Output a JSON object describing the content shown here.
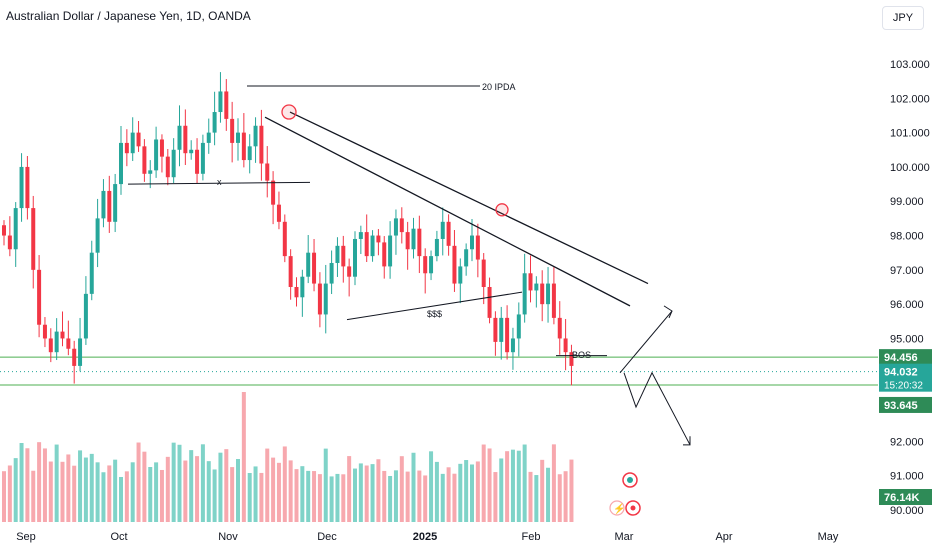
{
  "header": {
    "title": "Australian Dollar / Japanese Yen, 1D, OANDA",
    "currency": "JPY"
  },
  "colors": {
    "up": "#26a69a",
    "down": "#f23645",
    "vol_up": "#7fd3c8",
    "vol_down": "#f7a8ae",
    "level_line": "#4caf50",
    "badge_green": "#2e8b57",
    "drawing": "#131722",
    "marker": "#f23645"
  },
  "chart_data": {
    "type": "candlestick",
    "ylim": [
      89.9,
      103.3
    ],
    "ticks": [
      "103.000",
      "102.000",
      "101.000",
      "100.000",
      "99.000",
      "98.000",
      "97.000",
      "96.000",
      "95.000",
      "92.000",
      "91.000",
      "90.000"
    ],
    "tick_values": [
      103,
      102,
      101,
      100,
      99,
      98,
      97,
      96,
      95,
      92,
      91,
      90
    ],
    "xlabels": [
      "Sep",
      "Oct",
      "Nov",
      "Dec",
      "2025",
      "Feb",
      "Mar",
      "Apr",
      "May"
    ],
    "price_levels": [
      {
        "value": 94.456,
        "label": "94.456",
        "kind": "line"
      },
      {
        "value": 93.645,
        "label": "93.645",
        "kind": "line"
      },
      {
        "value": 94.032,
        "label": "94.032",
        "kind": "current"
      }
    ],
    "countdown": "15:20:32",
    "volume_label": "76.14K",
    "annotations": [
      {
        "text": "20 IPDA",
        "x": "Nov",
        "y": 102.36
      },
      {
        "text": "x",
        "x": "Nov",
        "y": 99.5
      },
      {
        "text": "$$$",
        "x": "Jan",
        "y": 95.6
      },
      {
        "text": "BOS",
        "x": "Feb",
        "y": 94.5
      }
    ],
    "closes": [
      98.0,
      97.6,
      98.8,
      100.0,
      98.8,
      97.0,
      95.4,
      95.0,
      94.6,
      95.2,
      95.0,
      94.7,
      94.2,
      95.0,
      96.3,
      97.5,
      98.5,
      99.3,
      98.4,
      99.5,
      100.7,
      100.4,
      101.0,
      100.6,
      99.8,
      99.9,
      100.8,
      100.3,
      99.7,
      100.5,
      101.2,
      100.4,
      100.5,
      99.8,
      100.7,
      101.0,
      101.6,
      102.2,
      101.4,
      100.7,
      101.0,
      100.2,
      100.6,
      101.2,
      100.1,
      99.6,
      98.9,
      98.4,
      97.4,
      96.5,
      96.2,
      96.8,
      97.5,
      96.6,
      95.7,
      96.6,
      97.2,
      97.7,
      97.1,
      96.8,
      97.9,
      98.1,
      97.4,
      98.0,
      97.8,
      97.1,
      98.0,
      98.5,
      98.1,
      97.6,
      98.2,
      97.4,
      96.9,
      97.4,
      97.9,
      98.4,
      97.7,
      96.6,
      97.1,
      97.6,
      98.0,
      97.3,
      96.5,
      95.6,
      94.9,
      95.6,
      94.6,
      95.0,
      95.7,
      96.9,
      96.4,
      96.6,
      96.0,
      96.6,
      95.6,
      95.0,
      94.6,
      94.2
    ]
  }
}
